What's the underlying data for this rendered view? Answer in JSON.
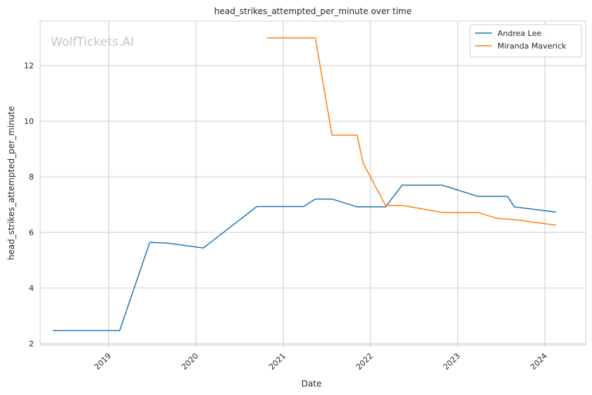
{
  "chart_data": {
    "type": "line",
    "title": "head_strikes_attempted_per_minute over time",
    "xlabel": "Date",
    "ylabel": "head_strikes_attempted_per_minute",
    "watermark": "WolfTickets.AI",
    "grid": true,
    "legend_position": "top-right",
    "xlim": [
      "2018-03-20",
      "2024-06-20"
    ],
    "ylim": [
      1.95,
      13.6
    ],
    "x_ticks": [
      "2019",
      "2020",
      "2021",
      "2022",
      "2023",
      "2024"
    ],
    "y_ticks": [
      2,
      4,
      6,
      8,
      10,
      12
    ],
    "series": [
      {
        "name": "Andrea Lee",
        "color": "#1f77b4",
        "points": [
          [
            "2018-05-12",
            2.47
          ],
          [
            "2019-02-16",
            2.47
          ],
          [
            "2019-06-22",
            5.64
          ],
          [
            "2019-08-31",
            5.62
          ],
          [
            "2020-02-01",
            5.44
          ],
          [
            "2020-09-12",
            6.93
          ],
          [
            "2021-03-27",
            6.93
          ],
          [
            "2021-05-15",
            7.2
          ],
          [
            "2021-07-24",
            7.2
          ],
          [
            "2021-11-06",
            6.92
          ],
          [
            "2022-03-05",
            6.92
          ],
          [
            "2022-05-14",
            7.7
          ],
          [
            "2022-10-29",
            7.7
          ],
          [
            "2023-03-25",
            7.3
          ],
          [
            "2023-07-29",
            7.3
          ],
          [
            "2023-08-26",
            6.92
          ],
          [
            "2024-02-17",
            6.73
          ]
        ]
      },
      {
        "name": "Miranda Maverick",
        "color": "#ff7f0e",
        "points": [
          [
            "2020-10-24",
            13.0
          ],
          [
            "2021-05-15",
            13.0
          ],
          [
            "2021-07-24",
            9.5
          ],
          [
            "2021-11-06",
            9.5
          ],
          [
            "2021-12-01",
            8.5
          ],
          [
            "2022-03-05",
            6.97
          ],
          [
            "2022-05-14",
            6.97
          ],
          [
            "2022-10-29",
            6.72
          ],
          [
            "2023-03-25",
            6.72
          ],
          [
            "2023-06-17",
            6.5
          ],
          [
            "2023-08-26",
            6.46
          ],
          [
            "2024-02-17",
            6.26
          ]
        ]
      }
    ]
  }
}
